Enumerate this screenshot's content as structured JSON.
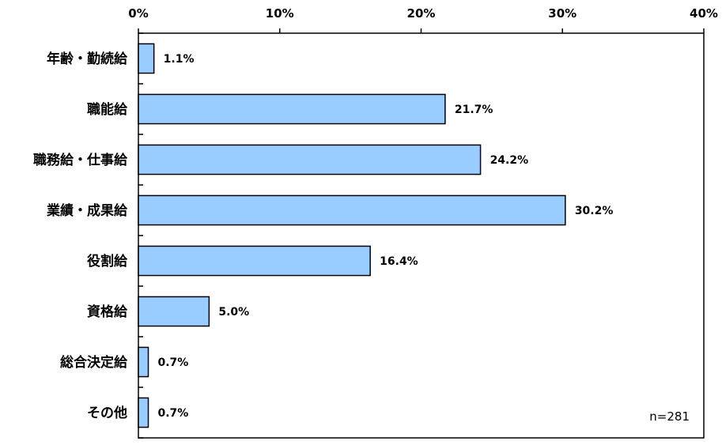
{
  "chart_data": {
    "type": "bar",
    "orientation": "horizontal",
    "categories": [
      "年齢・勤続給",
      "職能給",
      "職務給・仕事給",
      "業績・成果給",
      "役割給",
      "資格給",
      "総合決定給",
      "その他"
    ],
    "values": [
      1.1,
      21.7,
      24.2,
      30.2,
      16.4,
      5.0,
      0.7,
      0.7
    ],
    "value_labels": [
      "1.1%",
      "21.7%",
      "24.2%",
      "30.2%",
      "16.4%",
      "5.0%",
      "0.7%",
      "0.7%"
    ],
    "xlim": [
      0,
      40
    ],
    "x_ticks": [
      0,
      10,
      20,
      30,
      40
    ],
    "x_tick_labels": [
      "0%",
      "10%",
      "20%",
      "30%",
      "40%"
    ],
    "x_axis_position": "top",
    "grid": false,
    "bar_color": "#99ccff",
    "bar_edge_color": "#000000",
    "annotation": "n=281"
  }
}
